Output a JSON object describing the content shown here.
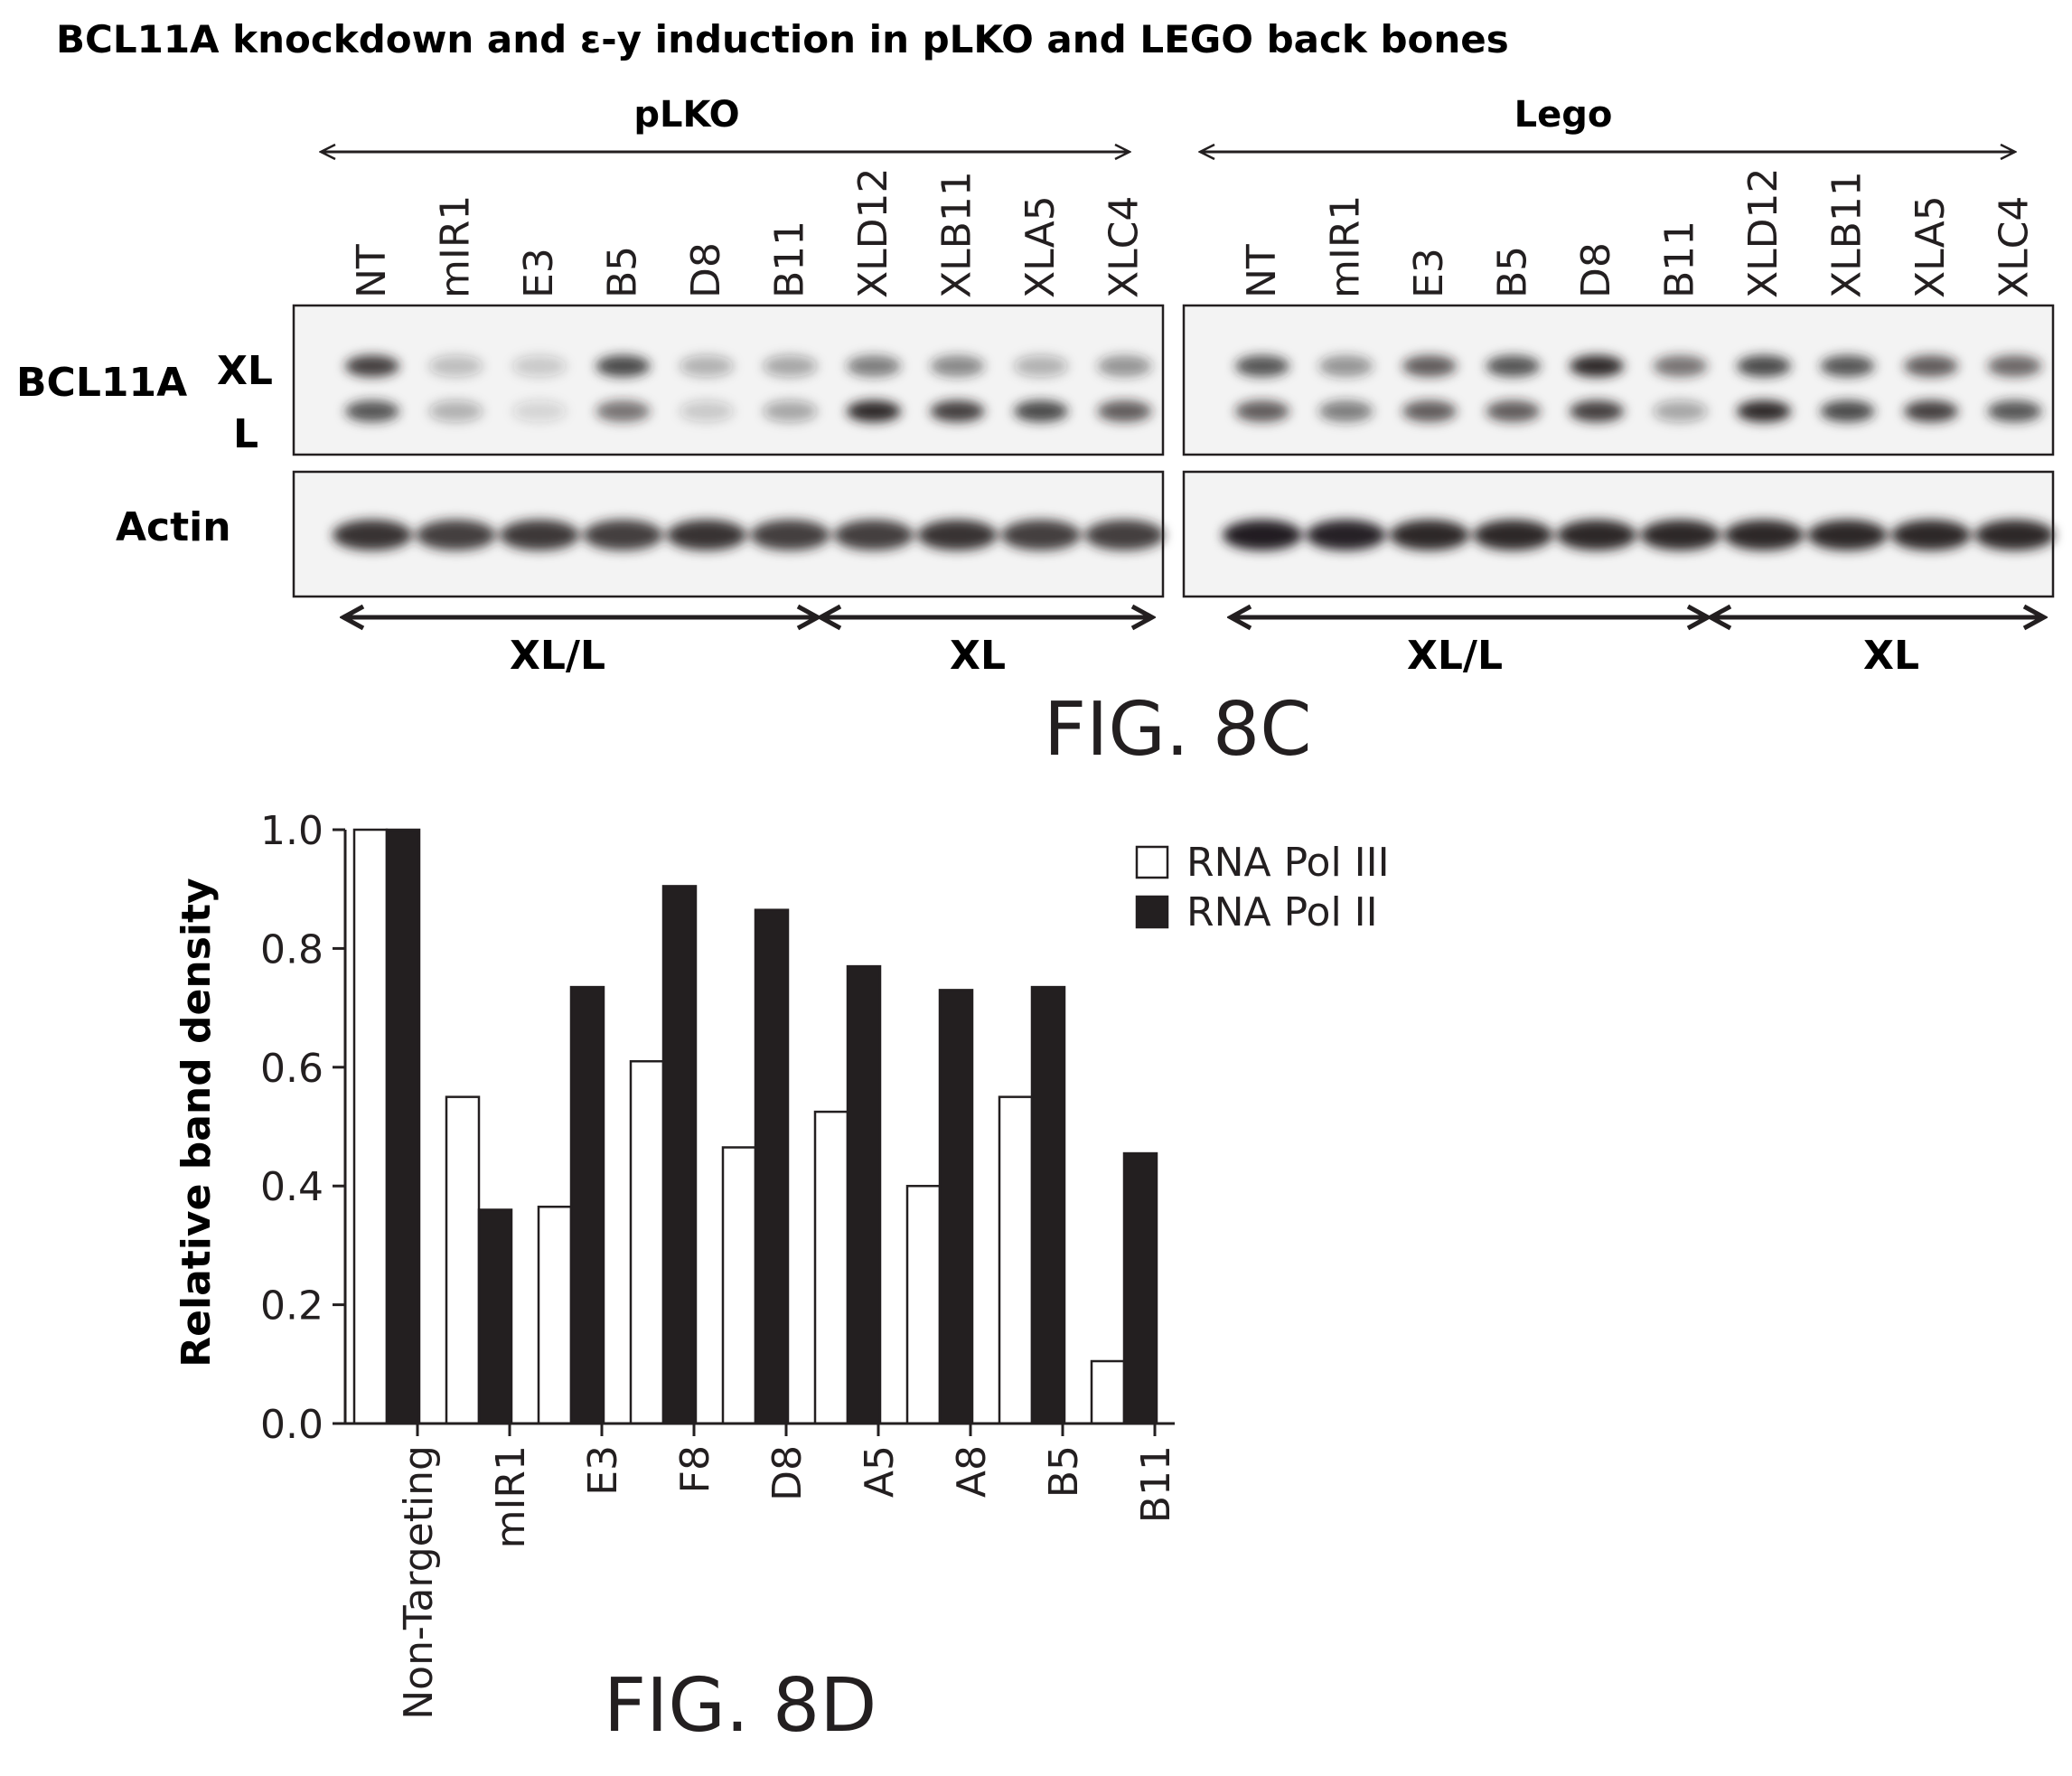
{
  "title": "BCL11A knockdown and ε-y induction in pLKO and LEGO back bones",
  "fig_8c": {
    "label": "FIG. 8C",
    "row_labels": {
      "protein": "BCL11A",
      "xl": "XL",
      "l": "L",
      "actin": "Actin"
    },
    "panels": [
      {
        "backbone": "pLKO",
        "lanes": [
          "NT",
          "mIR1",
          "E3",
          "B5",
          "D8",
          "B11",
          "XLD12",
          "XLB11",
          "XLA5",
          "XLC4"
        ],
        "groups": [
          "XL/L",
          "XL"
        ],
        "band_intensity_xl": [
          0.85,
          0.25,
          0.2,
          0.8,
          0.3,
          0.35,
          0.55,
          0.5,
          0.3,
          0.45
        ],
        "band_intensity_l": [
          0.75,
          0.3,
          0.15,
          0.6,
          0.2,
          0.35,
          0.95,
          0.85,
          0.8,
          0.7
        ],
        "actin_intensity": [
          0.9,
          0.85,
          0.88,
          0.85,
          0.9,
          0.85,
          0.85,
          0.9,
          0.85,
          0.85
        ]
      },
      {
        "backbone": "Lego",
        "lanes": [
          "NT",
          "mIR1",
          "E3",
          "B5",
          "D8",
          "B11",
          "XLD12",
          "XLB11",
          "XLA5",
          "XLC4"
        ],
        "groups": [
          "XL/L",
          "XL"
        ],
        "band_intensity_xl": [
          0.75,
          0.45,
          0.7,
          0.75,
          0.95,
          0.6,
          0.8,
          0.75,
          0.7,
          0.65
        ],
        "band_intensity_l": [
          0.7,
          0.55,
          0.7,
          0.7,
          0.85,
          0.35,
          0.95,
          0.8,
          0.85,
          0.75
        ],
        "actin_intensity": [
          1.0,
          0.98,
          0.95,
          0.95,
          0.95,
          0.95,
          0.95,
          0.95,
          0.95,
          0.95
        ]
      }
    ]
  },
  "fig_8d": {
    "label": "FIG. 8D"
  },
  "colors": {
    "ink": "#231f20",
    "bar_pol2": "#231f20",
    "bar_pol3": "#ffffff"
  },
  "chart_data": {
    "type": "bar",
    "categories": [
      "Non-Targeting",
      "mIR1",
      "E3",
      "F8",
      "D8",
      "A5",
      "A8",
      "B5",
      "B11"
    ],
    "series": [
      {
        "name": "RNA Pol III",
        "values": [
          1.0,
          0.55,
          0.365,
          0.61,
          0.465,
          0.525,
          0.4,
          0.55,
          0.105
        ]
      },
      {
        "name": "RNA Pol II",
        "values": [
          1.0,
          0.36,
          0.735,
          0.905,
          0.865,
          0.77,
          0.73,
          0.735,
          0.455
        ]
      }
    ],
    "title": "",
    "xlabel": "",
    "ylabel": "Relative band density",
    "ylim": [
      0,
      1.0
    ],
    "yticks": [
      "0.0",
      "0.2",
      "0.4",
      "0.6",
      "0.8",
      "1.0"
    ],
    "grid": false,
    "legend_position": "top-right"
  }
}
